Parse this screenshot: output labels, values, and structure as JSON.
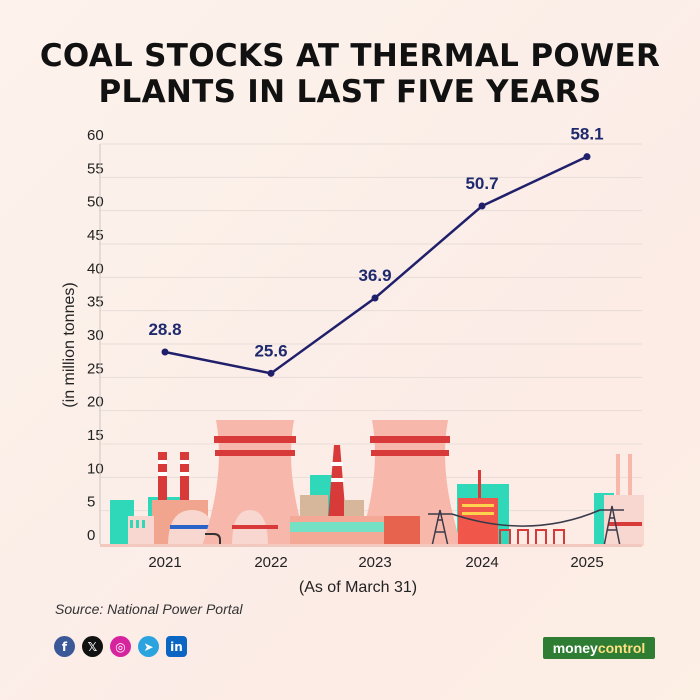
{
  "chart_data": {
    "type": "line",
    "title_lines": [
      "COAL STOCKS AT THERMAL POWER",
      "PLANTS IN LAST FIVE YEARS"
    ],
    "x": [
      "2021",
      "2022",
      "2023",
      "2024",
      "2025"
    ],
    "values": [
      28.8,
      25.6,
      36.9,
      50.7,
      58.1
    ],
    "data_labels": [
      "28.8",
      "25.6",
      "36.9",
      "50.7",
      "58.1"
    ],
    "ylabel": "(in million tonnes)",
    "xlabel": "(As of March 31)",
    "ylim": [
      0,
      60
    ],
    "yticks": [
      0,
      5,
      10,
      15,
      20,
      25,
      30,
      35,
      40,
      45,
      50,
      55,
      60
    ],
    "grid": true,
    "line_color": "#1f1f6b",
    "label_color": "#1f2a6e"
  },
  "source": "Source: National Power Portal",
  "socials": [
    {
      "icon": "facebook-icon",
      "glyph": "f",
      "color": "#3b5998"
    },
    {
      "icon": "x-icon",
      "glyph": "𝕏",
      "color": "#111111"
    },
    {
      "icon": "instagram-icon",
      "glyph": "◎",
      "color": "#d6249f"
    },
    {
      "icon": "telegram-icon",
      "glyph": "➤",
      "color": "#2aa3df"
    },
    {
      "icon": "linkedin-icon",
      "glyph": "in",
      "color": "#0a66c2"
    }
  ],
  "brand": {
    "part1": "money",
    "part2": "control"
  }
}
